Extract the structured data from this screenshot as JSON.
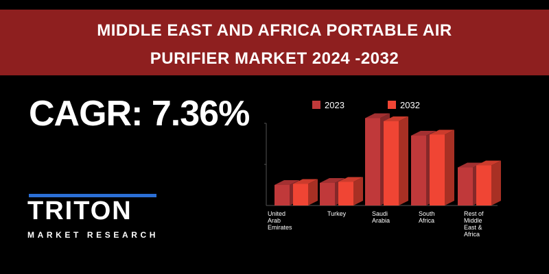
{
  "banner": {
    "title_line1": "MIDDLE EAST AND AFRICA PORTABLE AIR",
    "title_line2": "PURIFIER MARKET 2024 -2032"
  },
  "cagr": "CAGR: 7.36%",
  "logo": {
    "word": "TRITON",
    "sub": "MARKET RESEARCH"
  },
  "colors": {
    "banner": "#8e1f1f",
    "series_2023": "#c0393a",
    "series_2032": "#f04534",
    "logo_accent": "#2b6fd6"
  },
  "chart_data": {
    "type": "bar",
    "categories": [
      [
        "United",
        "Arab",
        "Emirates"
      ],
      [
        "Turkey"
      ],
      [
        "Saudi",
        "Arabia"
      ],
      [
        "South",
        "Africa"
      ],
      [
        "Rest of",
        "Middle",
        "East &",
        "Africa"
      ]
    ],
    "series": [
      {
        "name": "2023",
        "values": [
          2.0,
          2.2,
          8.5,
          6.8,
          3.7
        ]
      },
      {
        "name": "2032",
        "values": [
          2.1,
          2.3,
          8.2,
          6.9,
          3.9
        ]
      }
    ],
    "ylim": [
      0,
      10
    ],
    "legend_position": "top",
    "grid": false
  }
}
